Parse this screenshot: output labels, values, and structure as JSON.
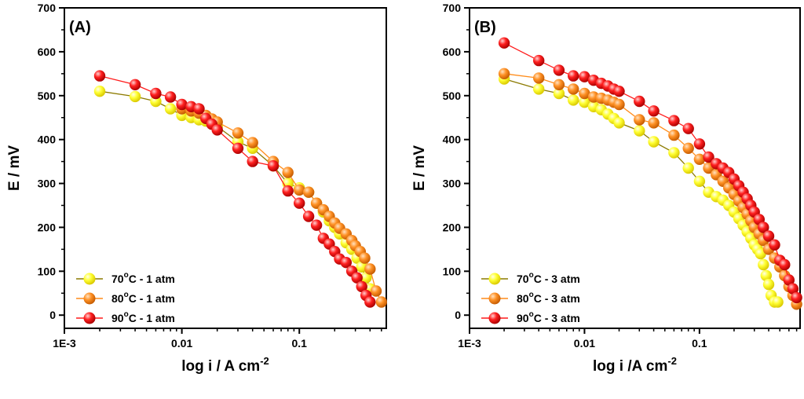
{
  "chart_data": [
    {
      "type": "line",
      "panel_label": "(A)",
      "x_scale": "log",
      "xlim": [
        0.001,
        0.55
      ],
      "ylim": [
        -30,
        700
      ],
      "xticks": [
        {
          "value": 0.001,
          "label": "1E-3"
        },
        {
          "value": 0.01,
          "label": "0.01"
        },
        {
          "value": 0.1,
          "label": "0.1"
        }
      ],
      "yticks": [
        0,
        100,
        200,
        300,
        400,
        500,
        600,
        700
      ],
      "xlabel": "log i / A cm",
      "xlabel_sup": "-2",
      "ylabel": "E / mV",
      "legend_position": "bottom-left",
      "series": [
        {
          "name": "70",
          "deg": "o",
          "suffix": "C - 1 atm",
          "color": "#ffff1a",
          "line_color": "#8c7a00",
          "x": [
            0.002,
            0.004,
            0.006,
            0.008,
            0.01,
            0.012,
            0.014,
            0.016,
            0.02,
            0.03,
            0.04,
            0.06,
            0.08,
            0.1,
            0.12,
            0.14,
            0.16,
            0.18,
            0.2,
            0.22,
            0.25,
            0.28,
            0.31,
            0.34,
            0.37,
            0.4
          ],
          "y": [
            510,
            498,
            487,
            470,
            455,
            450,
            445,
            442,
            430,
            395,
            380,
            340,
            300,
            290,
            280,
            255,
            235,
            215,
            200,
            185,
            165,
            150,
            130,
            110,
            85,
            60
          ]
        },
        {
          "name": "80",
          "deg": "o",
          "suffix": "C - 1 atm",
          "color": "#ff8c1a",
          "line_color": "#ff8c1a",
          "x": [
            0.01,
            0.012,
            0.014,
            0.016,
            0.018,
            0.02,
            0.03,
            0.04,
            0.06,
            0.08,
            0.1,
            0.12,
            0.14,
            0.16,
            0.18,
            0.2,
            0.22,
            0.25,
            0.28,
            0.3,
            0.33,
            0.36,
            0.4,
            0.45,
            0.5
          ],
          "y": [
            470,
            465,
            460,
            455,
            447,
            440,
            415,
            393,
            350,
            325,
            285,
            280,
            255,
            240,
            225,
            210,
            198,
            185,
            170,
            158,
            145,
            130,
            105,
            55,
            30
          ]
        },
        {
          "name": "90",
          "deg": "o",
          "suffix": "C - 1 atm",
          "color": "#ff1a1a",
          "line_color": "#ff1a1a",
          "x": [
            0.002,
            0.004,
            0.006,
            0.008,
            0.01,
            0.012,
            0.014,
            0.016,
            0.018,
            0.02,
            0.03,
            0.04,
            0.06,
            0.08,
            0.1,
            0.12,
            0.14,
            0.16,
            0.18,
            0.2,
            0.22,
            0.25,
            0.28,
            0.31,
            0.34,
            0.37,
            0.4
          ],
          "y": [
            545,
            525,
            505,
            497,
            480,
            475,
            470,
            448,
            435,
            422,
            380,
            350,
            340,
            283,
            255,
            225,
            205,
            175,
            162,
            145,
            128,
            120,
            100,
            85,
            65,
            45,
            30
          ]
        }
      ]
    },
    {
      "type": "line",
      "panel_label": "(B)",
      "x_scale": "log",
      "xlim": [
        0.001,
        0.75
      ],
      "ylim": [
        -30,
        700
      ],
      "xticks": [
        {
          "value": 0.001,
          "label": "1E-3"
        },
        {
          "value": 0.01,
          "label": "0.01"
        },
        {
          "value": 0.1,
          "label": "0.1"
        }
      ],
      "yticks": [
        0,
        100,
        200,
        300,
        400,
        500,
        600,
        700
      ],
      "xlabel": "log i /A cm",
      "xlabel_sup": "-2",
      "ylabel": "E / mV",
      "legend_position": "bottom-left",
      "series": [
        {
          "name": "70",
          "deg": "o",
          "suffix": "C - 3 atm",
          "color": "#ffff1a",
          "line_color": "#8c7a00",
          "x": [
            0.002,
            0.004,
            0.006,
            0.008,
            0.01,
            0.012,
            0.014,
            0.016,
            0.018,
            0.02,
            0.03,
            0.04,
            0.06,
            0.08,
            0.1,
            0.12,
            0.14,
            0.16,
            0.18,
            0.2,
            0.22,
            0.24,
            0.26,
            0.28,
            0.3,
            0.32,
            0.34,
            0.36,
            0.38,
            0.4,
            0.42,
            0.45,
            0.48
          ],
          "y": [
            538,
            515,
            505,
            490,
            485,
            475,
            468,
            458,
            448,
            438,
            420,
            395,
            370,
            335,
            305,
            280,
            270,
            262,
            250,
            235,
            220,
            205,
            190,
            175,
            160,
            150,
            140,
            115,
            90,
            70,
            45,
            30,
            30
          ]
        },
        {
          "name": "80",
          "deg": "o",
          "suffix": "C - 3 atm",
          "color": "#ff8c1a",
          "line_color": "#ff8c1a",
          "x": [
            0.002,
            0.004,
            0.006,
            0.008,
            0.01,
            0.012,
            0.014,
            0.016,
            0.018,
            0.02,
            0.03,
            0.04,
            0.06,
            0.08,
            0.1,
            0.12,
            0.14,
            0.16,
            0.18,
            0.2,
            0.22,
            0.24,
            0.26,
            0.28,
            0.3,
            0.33,
            0.36,
            0.4,
            0.45,
            0.5,
            0.55,
            0.6,
            0.65,
            0.7
          ],
          "y": [
            550,
            540,
            525,
            515,
            505,
            497,
            494,
            490,
            485,
            480,
            445,
            438,
            410,
            380,
            355,
            335,
            320,
            305,
            290,
            275,
            260,
            245,
            230,
            215,
            200,
            185,
            170,
            150,
            130,
            110,
            90,
            65,
            45,
            25
          ]
        },
        {
          "name": "90",
          "deg": "o",
          "suffix": "C - 3 atm",
          "color": "#ff1a1a",
          "line_color": "#ff1a1a",
          "x": [
            0.002,
            0.004,
            0.006,
            0.008,
            0.01,
            0.012,
            0.014,
            0.016,
            0.018,
            0.02,
            0.03,
            0.04,
            0.06,
            0.08,
            0.1,
            0.12,
            0.14,
            0.16,
            0.18,
            0.2,
            0.22,
            0.24,
            0.26,
            0.28,
            0.3,
            0.33,
            0.36,
            0.4,
            0.45,
            0.5,
            0.55,
            0.6,
            0.65,
            0.7
          ],
          "y": [
            620,
            580,
            558,
            545,
            543,
            535,
            528,
            522,
            515,
            510,
            487,
            465,
            443,
            425,
            390,
            360,
            345,
            335,
            325,
            310,
            295,
            280,
            265,
            250,
            235,
            218,
            200,
            180,
            160,
            125,
            115,
            80,
            60,
            40
          ]
        }
      ]
    }
  ]
}
